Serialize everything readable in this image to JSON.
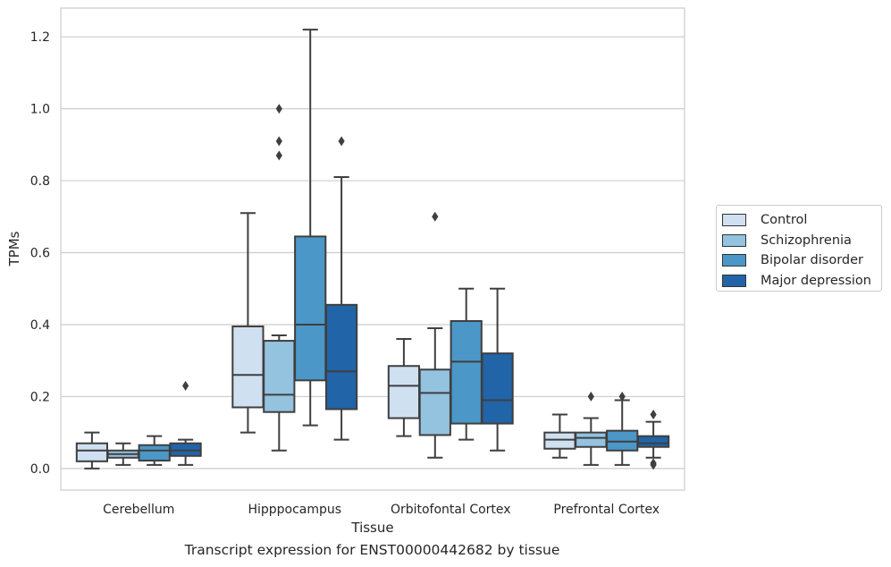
{
  "chart_data": {
    "type": "box",
    "title": "Transcript expression for ENST00000442682 by tissue",
    "xlabel": "Tissue",
    "ylabel": "TPMs",
    "ylim": [
      -0.06,
      1.28
    ],
    "yticks": [
      "0.0",
      "0.2",
      "0.4",
      "0.6",
      "0.8",
      "1.0",
      "1.2"
    ],
    "grid": "horizontal",
    "legend_position": "right",
    "categories": [
      "Cerebellum",
      "Hipppocampus",
      "Orbitofontal Cortex",
      "Prefrontal Cortex"
    ],
    "series": [
      {
        "name": "Control",
        "color": "#cfe0f1",
        "boxes": [
          {
            "whislo": 0.0,
            "q1": 0.02,
            "med": 0.05,
            "q3": 0.07,
            "whishi": 0.1,
            "fliers": []
          },
          {
            "whislo": 0.1,
            "q1": 0.17,
            "med": 0.26,
            "q3": 0.395,
            "whishi": 0.71,
            "fliers": []
          },
          {
            "whislo": 0.09,
            "q1": 0.14,
            "med": 0.23,
            "q3": 0.285,
            "whishi": 0.36,
            "fliers": []
          },
          {
            "whislo": 0.03,
            "q1": 0.055,
            "med": 0.08,
            "q3": 0.1,
            "whishi": 0.15,
            "fliers": []
          }
        ]
      },
      {
        "name": "Schizophrenia",
        "color": "#93c3df",
        "boxes": [
          {
            "whislo": 0.01,
            "q1": 0.03,
            "med": 0.04,
            "q3": 0.05,
            "whishi": 0.07,
            "fliers": []
          },
          {
            "whislo": 0.05,
            "q1": 0.157,
            "med": 0.205,
            "q3": 0.355,
            "whishi": 0.37,
            "fliers": [
              0.87,
              0.91,
              1.0
            ]
          },
          {
            "whislo": 0.03,
            "q1": 0.093,
            "med": 0.21,
            "q3": 0.275,
            "whishi": 0.39,
            "fliers": [
              0.7
            ]
          },
          {
            "whislo": 0.01,
            "q1": 0.06,
            "med": 0.085,
            "q3": 0.1,
            "whishi": 0.14,
            "fliers": [
              0.2
            ]
          }
        ]
      },
      {
        "name": "Bipolar disorder",
        "color": "#4b97c8",
        "boxes": [
          {
            "whislo": 0.01,
            "q1": 0.022,
            "med": 0.05,
            "q3": 0.065,
            "whishi": 0.09,
            "fliers": []
          },
          {
            "whislo": 0.12,
            "q1": 0.245,
            "med": 0.4,
            "q3": 0.645,
            "whishi": 1.22,
            "fliers": []
          },
          {
            "whislo": 0.08,
            "q1": 0.125,
            "med": 0.297,
            "q3": 0.41,
            "whishi": 0.5,
            "fliers": []
          },
          {
            "whislo": 0.01,
            "q1": 0.05,
            "med": 0.075,
            "q3": 0.105,
            "whishi": 0.19,
            "fliers": [
              0.2
            ]
          }
        ]
      },
      {
        "name": "Major depression",
        "color": "#2164a8",
        "boxes": [
          {
            "whislo": 0.01,
            "q1": 0.035,
            "med": 0.05,
            "q3": 0.07,
            "whishi": 0.08,
            "fliers": [
              0.23
            ]
          },
          {
            "whislo": 0.08,
            "q1": 0.165,
            "med": 0.27,
            "q3": 0.455,
            "whishi": 0.81,
            "fliers": [
              0.91
            ]
          },
          {
            "whislo": 0.05,
            "q1": 0.125,
            "med": 0.19,
            "q3": 0.32,
            "whishi": 0.5,
            "fliers": []
          },
          {
            "whislo": 0.03,
            "q1": 0.06,
            "med": 0.07,
            "q3": 0.09,
            "whishi": 0.13,
            "fliers": [
              0.01,
              0.015,
              0.15
            ]
          }
        ]
      }
    ]
  }
}
